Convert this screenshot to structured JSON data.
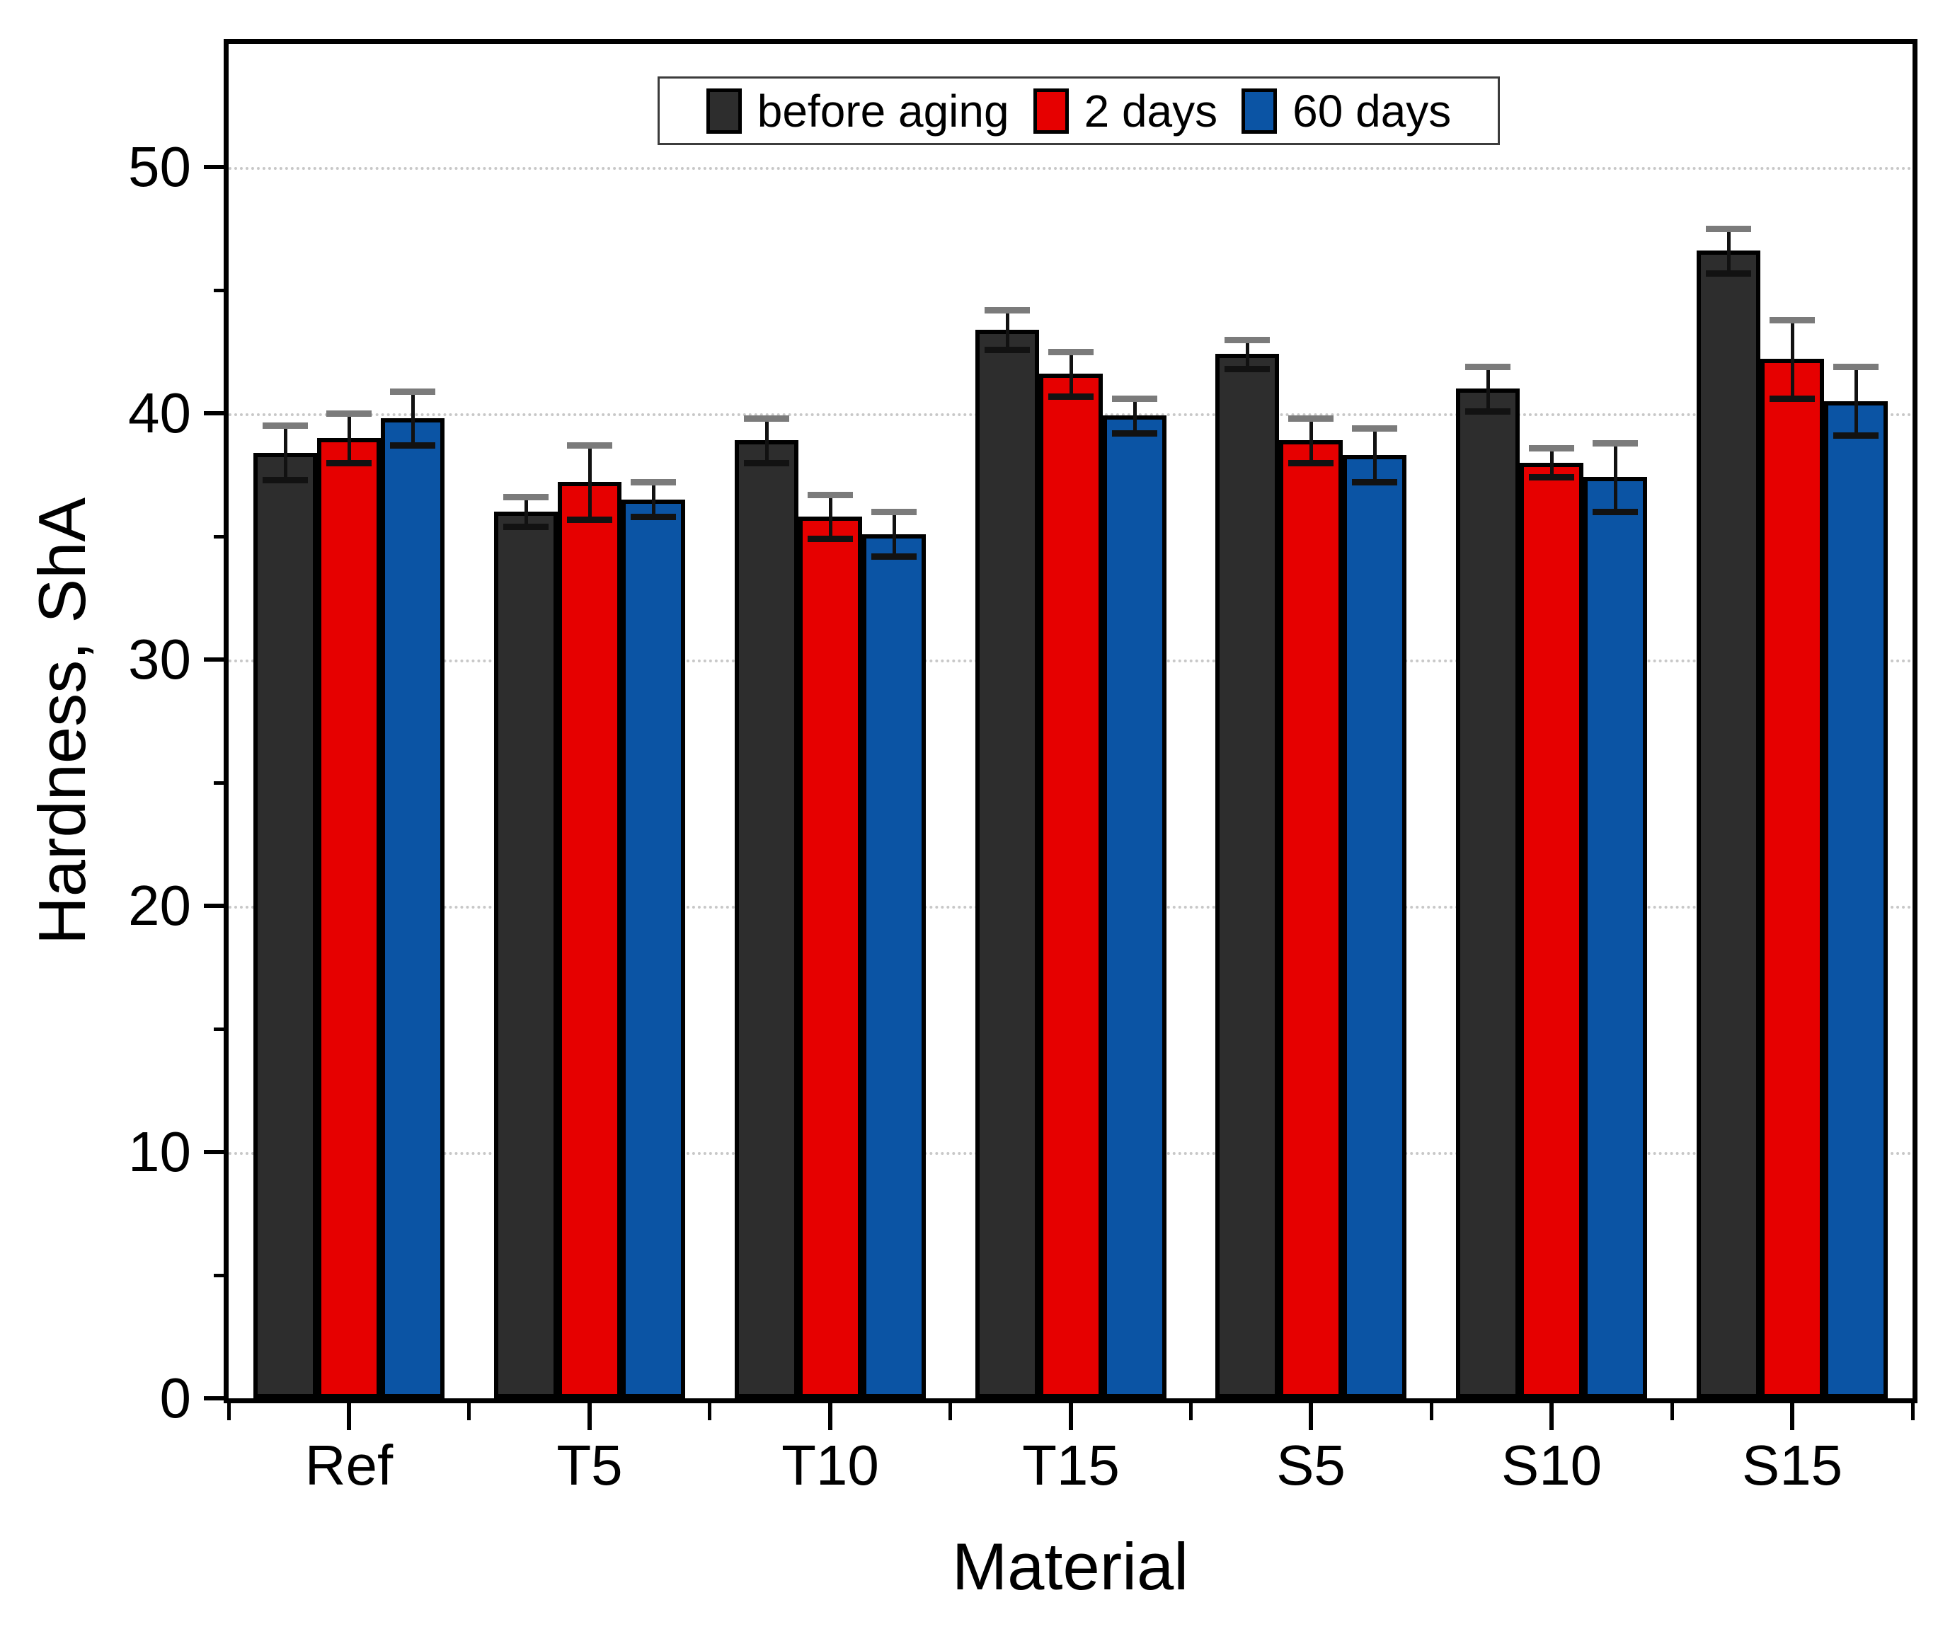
{
  "chart_data": {
    "type": "bar",
    "title": "",
    "xlabel": "Material",
    "ylabel": "Hardness, ShA",
    "ylim": [
      0,
      55
    ],
    "yticks_major": [
      0,
      10,
      20,
      30,
      40,
      50
    ],
    "yticks_minor": [
      5,
      15,
      25,
      35,
      45
    ],
    "grid": "horizontal dotted gridlines at major y ticks",
    "legend_position": "inside top center",
    "frame": "full box frame, ticks outside on left and bottom axes",
    "categories": [
      "Ref",
      "T5",
      "T10",
      "T15",
      "S5",
      "S10",
      "S15"
    ],
    "series": [
      {
        "name": "before aging",
        "color": "#2d2d2d",
        "values": [
          38.4,
          36.0,
          38.9,
          43.4,
          42.4,
          41.0,
          46.6
        ],
        "errors": [
          1.1,
          0.6,
          0.9,
          0.8,
          0.6,
          0.9,
          0.9
        ]
      },
      {
        "name": "2 days",
        "color": "#e60000",
        "values": [
          39.0,
          37.2,
          35.8,
          41.6,
          38.9,
          38.0,
          42.2
        ],
        "errors": [
          1.0,
          1.5,
          0.9,
          0.9,
          0.9,
          0.6,
          1.6
        ]
      },
      {
        "name": "60 days",
        "color": "#0b54a4",
        "values": [
          39.8,
          36.5,
          35.1,
          39.9,
          38.3,
          37.4,
          40.5
        ],
        "errors": [
          1.1,
          0.7,
          0.9,
          0.7,
          1.1,
          1.4,
          1.4
        ]
      }
    ],
    "colors": {
      "axis": "#000000",
      "gridline": "#c8c8c8",
      "background": "#ffffff",
      "error_cap_top": "#7b7b7b",
      "error_cap_bottom": "#121212"
    }
  }
}
